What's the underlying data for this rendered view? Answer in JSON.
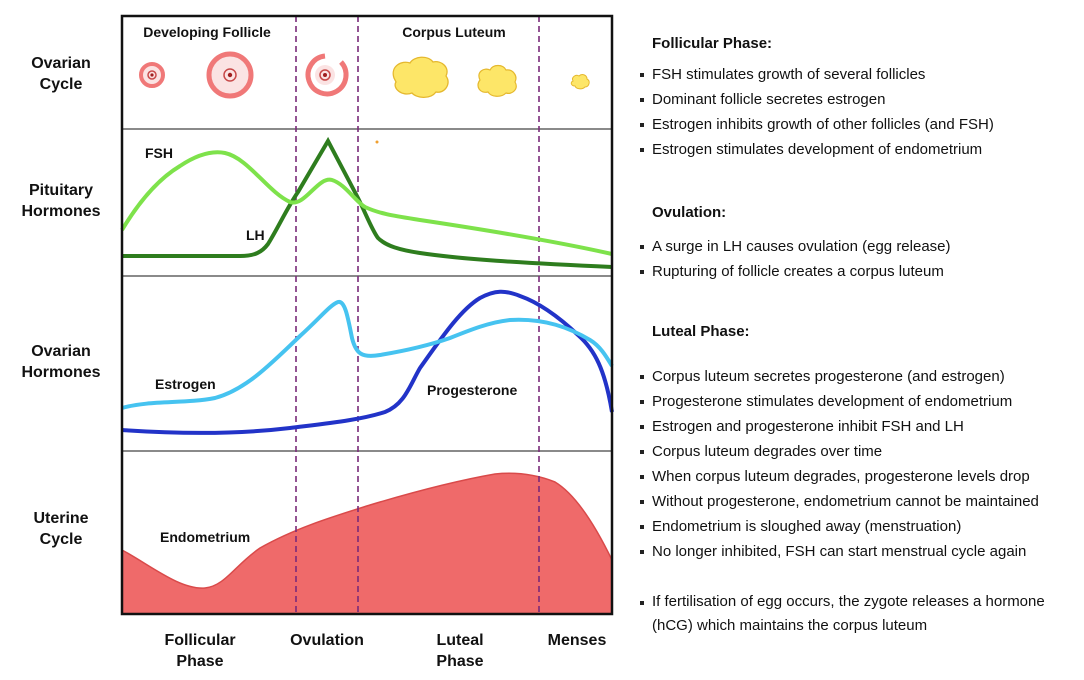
{
  "rows": {
    "ovarian_cycle": [
      "Ovarian",
      "Cycle"
    ],
    "pituitary_hormones": [
      "Pituitary",
      "Hormones"
    ],
    "ovarian_hormones": [
      "Ovarian",
      "Hormones"
    ],
    "uterine_cycle": [
      "Uterine",
      "Cycle"
    ]
  },
  "stages": {
    "developing_follicle": "Developing Follicle",
    "corpus_luteum": "Corpus Luteum"
  },
  "curves": {
    "fsh": "FSH",
    "lh": "LH",
    "estrogen": "Estrogen",
    "progesterone": "Progesterone",
    "endometrium": "Endometrium"
  },
  "phases": {
    "follicular": [
      "Follicular",
      "Phase"
    ],
    "ovulation": "Ovulation",
    "luteal": [
      "Luteal",
      "Phase"
    ],
    "menses": "Menses"
  },
  "colors": {
    "fsh": "#7ee24b",
    "lh": "#2e7d1e",
    "estrogen": "#46c3f0",
    "progesterone": "#2233c8",
    "endometrium": "#ef6a6a",
    "follicle": "#f07878",
    "corpus_luteum": "#fde668",
    "divider": "#7a2a7a"
  },
  "panel": {
    "follicular": {
      "title": "Follicular Phase:",
      "items": [
        "FSH stimulates growth of several follicles",
        "Dominant follicle secretes estrogen",
        "Estrogen inhibits growth of other follicles (and FSH)",
        "Estrogen stimulates development of endometrium"
      ]
    },
    "ovulation": {
      "title": "Ovulation:",
      "items": [
        "A surge in LH causes ovulation (egg release)",
        "Rupturing of follicle creates a corpus luteum"
      ]
    },
    "luteal": {
      "title": "Luteal Phase:",
      "items": [
        "Corpus luteum secretes progesterone (and estrogen)",
        "Progesterone stimulates development of endometrium",
        "Estrogen and progesterone inhibit FSH and LH",
        "Corpus luteum degrades over time",
        "When corpus luteum degrades, progesterone levels drop",
        "Without progesterone, endometrium cannot be maintained",
        "Endometrium is sloughed away (menstruation)",
        "No longer inhibited, FSH can start menstrual cycle again"
      ]
    },
    "fertilisation_note": "If fertilisation of egg occurs, the zygote releases a hormone (hCG) which maintains the corpus luteum"
  }
}
